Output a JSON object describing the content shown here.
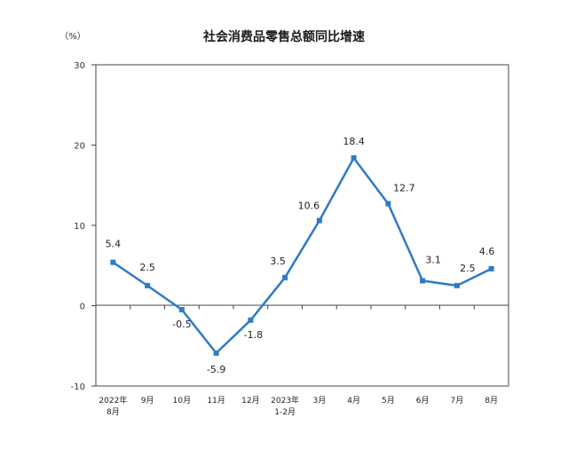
{
  "chart_data": {
    "type": "line",
    "title": "社会消费品零售总额同比增速",
    "unit": "（%）",
    "categories": [
      [
        "2022年",
        "8月"
      ],
      [
        "9月"
      ],
      [
        "10月"
      ],
      [
        "11月"
      ],
      [
        "12月"
      ],
      [
        "2023年",
        "1-2月"
      ],
      [
        "3月"
      ],
      [
        "4月"
      ],
      [
        "5月"
      ],
      [
        "6月"
      ],
      [
        "7月"
      ],
      [
        "8月"
      ]
    ],
    "values": [
      5.4,
      2.5,
      -0.5,
      -5.9,
      -1.8,
      3.5,
      10.6,
      18.4,
      12.7,
      3.1,
      2.5,
      4.6
    ],
    "data_labels": [
      "5.4",
      "2.5",
      "-0.5",
      "-5.9",
      "-1.8",
      "3.5",
      "10.6",
      "18.4",
      "12.7",
      "3.1",
      "2.5",
      "4.6"
    ],
    "ylim": [
      -10,
      30
    ],
    "yticks": [
      "30",
      "20",
      "10",
      "0",
      "-10"
    ],
    "grid": false,
    "line_color": "#2e7bc4",
    "marker": "square"
  }
}
